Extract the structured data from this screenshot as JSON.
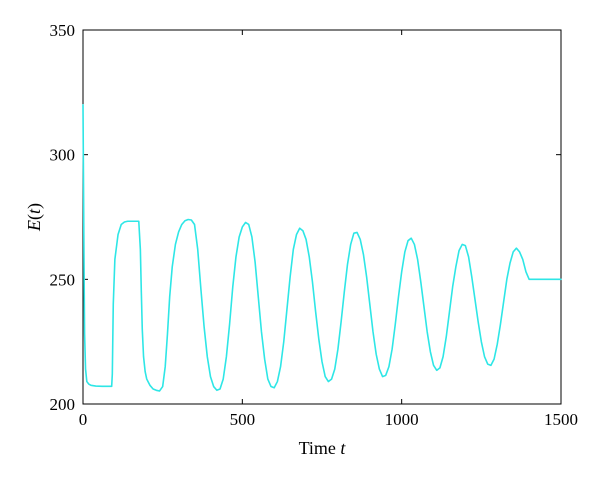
{
  "chart_data": {
    "type": "line",
    "xlabel": {
      "text": "Time ",
      "var": "t"
    },
    "ylabel": {
      "text": "E(t)",
      "var": "E",
      "open": "(",
      "arg": "t",
      "close": ")"
    },
    "xlim": [
      0,
      1500
    ],
    "ylim": [
      200,
      350
    ],
    "grid": false,
    "legend": "none",
    "xticks": [
      0,
      500,
      1000,
      1500
    ],
    "yticks": [
      200,
      250,
      300,
      350
    ],
    "xtick_labels": [
      "0",
      "500",
      "1000",
      "1500"
    ],
    "ytick_labels": [
      "200",
      "250",
      "300",
      "350"
    ],
    "series": [
      {
        "color": "#2ee6e6",
        "x": [
          0,
          1,
          3,
          5,
          8,
          12,
          18,
          25,
          40,
          60,
          80,
          90,
          92,
          95,
          100,
          110,
          120,
          130,
          140,
          150,
          160,
          170,
          175,
          180,
          183,
          186,
          190,
          195,
          200,
          210,
          220,
          230,
          240,
          250,
          258,
          265,
          272,
          280,
          290,
          300,
          310,
          320,
          330,
          340,
          350,
          360,
          370,
          380,
          390,
          400,
          410,
          420,
          430,
          440,
          450,
          460,
          470,
          480,
          490,
          500,
          510,
          520,
          530,
          540,
          550,
          560,
          570,
          580,
          590,
          600,
          610,
          620,
          630,
          640,
          650,
          660,
          670,
          680,
          690,
          700,
          710,
          720,
          730,
          740,
          750,
          760,
          770,
          780,
          790,
          800,
          810,
          820,
          830,
          840,
          850,
          860,
          870,
          880,
          890,
          900,
          910,
          920,
          930,
          940,
          950,
          960,
          970,
          980,
          990,
          1000,
          1010,
          1020,
          1030,
          1040,
          1050,
          1060,
          1070,
          1080,
          1090,
          1100,
          1110,
          1120,
          1130,
          1140,
          1150,
          1160,
          1170,
          1180,
          1190,
          1200,
          1210,
          1220,
          1230,
          1240,
          1250,
          1260,
          1270,
          1280,
          1290,
          1300,
          1310,
          1320,
          1330,
          1340,
          1350,
          1360,
          1370,
          1380,
          1390,
          1400,
          1410,
          1420,
          1430,
          1440,
          1450,
          1460,
          1470,
          1480,
          1490,
          1500
        ],
        "y": [
          320,
          300,
          260,
          228,
          214,
          209,
          208,
          207.5,
          207.2,
          207.1,
          207.1,
          207.1,
          212,
          240,
          258,
          268,
          272,
          273,
          273.3,
          273.3,
          273.3,
          273.3,
          273.3,
          262,
          245,
          230,
          219,
          213,
          210,
          207.5,
          206,
          205.5,
          205.2,
          207,
          215,
          228,
          243,
          255,
          264,
          269,
          272,
          273.5,
          274,
          273.8,
          272,
          262,
          246,
          231,
          219,
          211,
          207,
          205.5,
          206,
          210,
          219,
          232,
          247,
          259,
          267,
          271,
          272.8,
          272,
          267,
          257,
          243,
          229,
          218,
          210,
          207,
          206.5,
          209,
          215,
          225,
          238,
          251,
          262,
          268,
          270.5,
          269.5,
          266,
          259,
          249,
          237,
          226,
          217,
          211,
          209,
          210,
          214,
          222,
          233,
          245,
          256,
          264,
          268.5,
          268.8,
          266,
          260,
          251,
          240,
          229,
          220,
          214,
          211,
          211.5,
          215,
          222,
          232,
          243,
          253,
          261,
          265.5,
          266.5,
          264,
          258,
          249,
          239,
          229,
          221,
          215.5,
          213.5,
          214.5,
          219,
          227,
          237,
          247,
          255,
          261.5,
          264,
          263.5,
          259,
          251,
          242,
          233,
          225,
          219,
          216,
          215.5,
          218,
          224,
          232,
          241,
          250,
          256.5,
          261,
          262.5,
          261,
          258,
          253,
          250,
          250,
          250,
          250,
          250,
          250,
          250,
          250,
          250,
          250,
          250
        ]
      }
    ]
  }
}
